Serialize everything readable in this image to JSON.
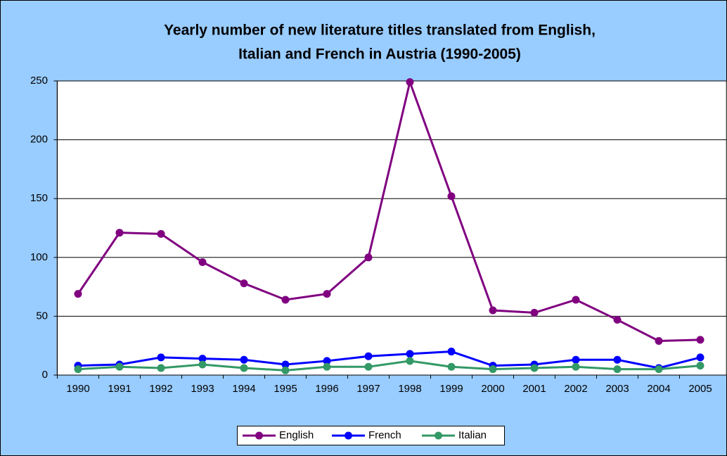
{
  "chart_data": {
    "type": "line",
    "title": [
      "Yearly number of new literature titles translated from English,",
      "Italian and French in Austria (1990-2005)"
    ],
    "categories": [
      "1990",
      "1991",
      "1992",
      "1993",
      "1994",
      "1995",
      "1996",
      "1997",
      "1998",
      "1999",
      "2000",
      "2001",
      "2002",
      "2003",
      "2004",
      "2005"
    ],
    "series": [
      {
        "name": "English",
        "color": "#800080",
        "values": [
          69,
          121,
          120,
          96,
          78,
          64,
          69,
          100,
          249,
          152,
          55,
          53,
          64,
          47,
          29,
          30
        ]
      },
      {
        "name": "French",
        "color": "#0000ff",
        "values": [
          8,
          9,
          15,
          14,
          13,
          9,
          12,
          16,
          18,
          20,
          8,
          9,
          13,
          13,
          6,
          15
        ]
      },
      {
        "name": "Italian",
        "color": "#339966",
        "values": [
          5,
          7,
          6,
          9,
          6,
          4,
          7,
          7,
          12,
          7,
          5,
          6,
          7,
          5,
          5,
          8
        ]
      }
    ],
    "ylim": [
      0,
      250
    ],
    "yticks": [
      0,
      50,
      100,
      150,
      200,
      250
    ],
    "grid": true,
    "legend": "bottom"
  }
}
